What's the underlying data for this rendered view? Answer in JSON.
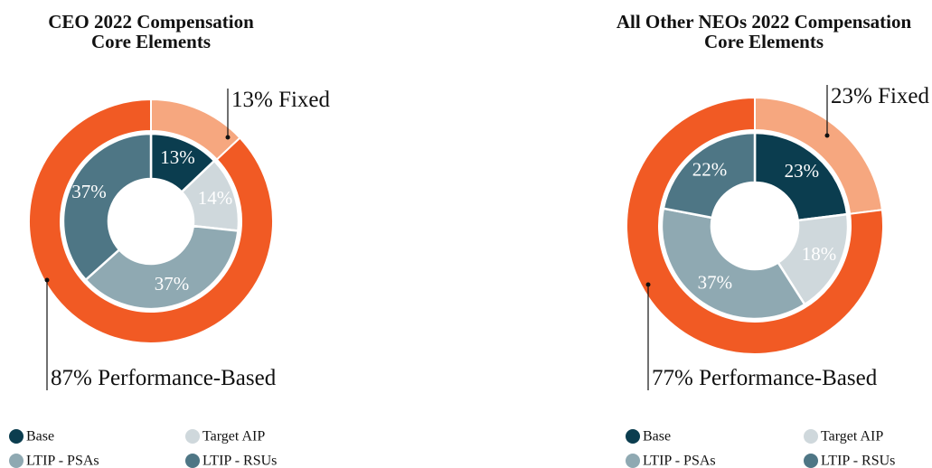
{
  "chart_data": [
    {
      "type": "nested-donut",
      "title": [
        "CEO 2022 Compensation",
        "Core Elements"
      ],
      "series": [
        {
          "name": "Base",
          "color": "#0b3d4f",
          "values": [
            13
          ],
          "value_labels": [
            "13%"
          ]
        },
        {
          "name": "Target AIP",
          "color": "#cfd8dc",
          "values": [
            14
          ],
          "value_labels": [
            "14%"
          ]
        },
        {
          "name": "LTIP - PSAs",
          "color": "#8fa9b2",
          "values": [
            37
          ],
          "value_labels": [
            "37%"
          ]
        },
        {
          "name": "LTIP - RSUs",
          "color": "#4e7685",
          "values": [
            37
          ],
          "value_labels": [
            "37%"
          ]
        }
      ],
      "outer": {
        "categories": [
          "Fixed",
          "Performance-Based"
        ],
        "values": [
          13,
          87
        ],
        "value_labels": [
          "13%",
          "87%"
        ],
        "colors": [
          "#f6a77f",
          "#f15a24"
        ]
      }
    },
    {
      "type": "nested-donut",
      "title": [
        "All Other NEOs 2022 Compensation",
        "Core Elements"
      ],
      "series": [
        {
          "name": "Base",
          "color": "#0b3d4f",
          "values": [
            23
          ],
          "value_labels": [
            "23%"
          ]
        },
        {
          "name": "Target AIP",
          "color": "#cfd8dc",
          "values": [
            18
          ],
          "value_labels": [
            "18%"
          ]
        },
        {
          "name": "LTIP - PSAs",
          "color": "#8fa9b2",
          "values": [
            37
          ],
          "value_labels": [
            "37%"
          ]
        },
        {
          "name": "LTIP - RSUs",
          "color": "#4e7685",
          "values": [
            22
          ],
          "value_labels": [
            "22%"
          ]
        }
      ],
      "outer": {
        "categories": [
          "Fixed",
          "Performance-Based"
        ],
        "values": [
          23,
          77
        ],
        "value_labels": [
          "23%",
          "77%"
        ],
        "colors": [
          "#f6a77f",
          "#f15a24"
        ]
      }
    }
  ]
}
